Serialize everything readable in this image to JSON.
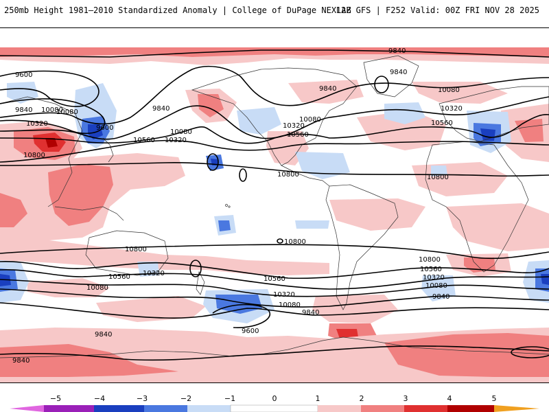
{
  "header": {
    "left_title": "250mb Height 1981–2010 Standardized Anomaly | College of DuPage NEXLAB",
    "right_title": "12Z GFS | F252 Valid: 00Z FRI NOV 28 2025"
  },
  "colors": {
    "neg5": "#e066e0",
    "neg4": "#9a20b8",
    "neg3": "#1a3fbf",
    "neg2": "#4a78e0",
    "neg1": "#c8dcf6",
    "pos1": "#f7c8c8",
    "pos2": "#f08080",
    "pos3": "#e03030",
    "pos4": "#b00000",
    "pos5": "#f0a020",
    "coast": "#333333",
    "contour": "#000000"
  },
  "contour_labels": {
    "c1": "9600",
    "c2": "9840",
    "c3": "10080",
    "c4": "10320",
    "c5": "10800",
    "c6": "9600",
    "c7": "10080",
    "c8": "9840",
    "c9": "10080",
    "c10": "10320",
    "c11": "10560",
    "c12": "10320",
    "c13": "10560",
    "c14": "10800",
    "c15": "9840",
    "c16": "9840",
    "c17": "10080",
    "c18": "10320",
    "c19": "10560",
    "c20": "10800",
    "c21": "10080",
    "c22": "10800",
    "c23": "10800",
    "c24": "10560",
    "c25": "10320",
    "c26": "10080",
    "c27": "10800",
    "c28": "10560",
    "c29": "10320",
    "c30": "10080",
    "c31": "9840",
    "c32": "10320",
    "c33": "10080",
    "c34": "9840",
    "c35": "9600",
    "c36": "9840",
    "c37": "9840",
    "c38": "10800"
  },
  "legend": {
    "ticks": [
      "−5",
      "−4",
      "−3",
      "−2",
      "−1",
      "0",
      "1",
      "2",
      "3",
      "4",
      "5"
    ]
  }
}
